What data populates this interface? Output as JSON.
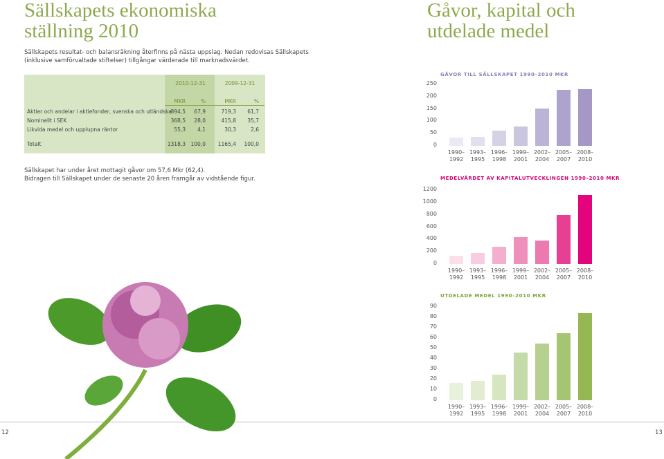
{
  "left_page": {
    "title": [
      "Sällskapets ekonomiska",
      "ställning 2010"
    ],
    "intro": [
      "Sällskapets resultat- och balansräkning återfinns på nästa uppslag. Nedan redovisas Sällskapets",
      "(inklusive samförvaltade stiftelser) tillgångar värderade till marknadsvärdet."
    ],
    "table": {
      "columns": [
        "2010-12-31",
        "2009-12-31"
      ],
      "subheaders": [
        "MKR",
        "%",
        "MKR",
        "%"
      ],
      "rows": [
        {
          "label": "Aktier och andelar i aktiefonder, svenska och utländska",
          "cells": [
            "894,5",
            "67,9",
            "719,3",
            "61,7"
          ]
        },
        {
          "label": "Nominellt i SEK",
          "cells": [
            "368,5",
            "28,0",
            "415,8",
            "35,7"
          ]
        },
        {
          "label": "Likvida medel och upplupna räntor",
          "cells": [
            "55,3",
            "4,1",
            "30,3",
            "2,6"
          ]
        },
        {
          "label": "Totalt",
          "cells": [
            "1318,3",
            "100,0",
            "1165,4",
            "100,0"
          ]
        }
      ]
    },
    "note": [
      "Sällskapet har under året mottagit gåvor om 57,6 Mkr (62,4).",
      "Bidragen till Sällskapet under de senaste 20 åren framgår av vidstående figur."
    ],
    "page_number": "12"
  },
  "right_page": {
    "title": [
      "Gåvor, kapital och",
      "utdelade medel"
    ],
    "page_number": "13"
  },
  "chart_data": [
    {
      "type": "bar",
      "title": "GÅVOR TILL SÄLLSKAPET 1990–2010 MKR",
      "categories": [
        "1990–1992",
        "1993–1995",
        "1996–1998",
        "1999–2001",
        "2002–2004",
        "2005–2007",
        "2008–2010"
      ],
      "values": [
        34,
        37,
        62,
        79,
        152,
        228,
        230
      ],
      "colors": [
        "#ebe9f3",
        "#e2dfee",
        "#d6d2e6",
        "#cbc6df",
        "#bcb4d6",
        "#ada3cd",
        "#a597c6"
      ],
      "ylim": [
        0,
        250
      ],
      "yticks": [
        0,
        50,
        100,
        150,
        200,
        250
      ],
      "grid": false
    },
    {
      "type": "bar",
      "title": "MEDELVÄRDET AV KAPITALUTVECKLINGEN 1990–2010 MKR",
      "categories": [
        "1990–1992",
        "1993–1995",
        "1996–1998",
        "1999–2001",
        "2002–2004",
        "2005–2007",
        "2008–2010"
      ],
      "values": [
        134,
        180,
        280,
        437,
        381,
        796,
        1121
      ],
      "colors": [
        "#fbe0ec",
        "#f8cde1",
        "#f4afcf",
        "#ef8fbc",
        "#ec79b0",
        "#e63f93",
        "#e2037d"
      ],
      "ylim": [
        0,
        1200
      ],
      "yticks": [
        0,
        200,
        400,
        600,
        800,
        1000,
        1200
      ],
      "grid": false
    },
    {
      "type": "bar",
      "title": "UTDELADE MEDEL 1990–2010 MKR",
      "categories": [
        "1990–1992",
        "1993–1995",
        "1996–1998",
        "1999–2001",
        "2002–2004",
        "2005–2007",
        "2008–2010"
      ],
      "values": [
        17,
        19,
        25,
        46,
        55,
        65,
        84
      ],
      "colors": [
        "#e8f1db",
        "#e1ecd0",
        "#d6e6c1",
        "#c4daa8",
        "#b5d08f",
        "#a6c572",
        "#95b852"
      ],
      "ylim": [
        0,
        90
      ],
      "yticks": [
        0,
        10,
        20,
        30,
        40,
        50,
        60,
        70,
        80,
        90
      ],
      "grid": false
    }
  ]
}
